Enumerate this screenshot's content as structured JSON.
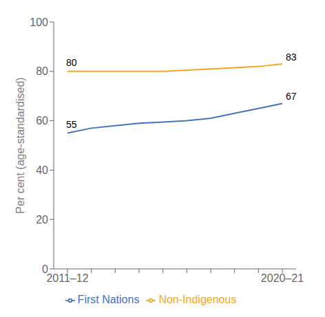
{
  "chart_data": {
    "type": "line",
    "categories": [
      "2011–12",
      null,
      null,
      null,
      null,
      null,
      null,
      null,
      null,
      "2020–21"
    ],
    "series": [
      {
        "name": "First Nations",
        "color": "#4472C4",
        "values": [
          55,
          57,
          58,
          59,
          59.5,
          60,
          61,
          63,
          65,
          67
        ]
      },
      {
        "name": "Non-Indigenous",
        "color": "#F5A623",
        "values": [
          80,
          80,
          80,
          80,
          80,
          80.5,
          81,
          81.5,
          82,
          83
        ]
      }
    ],
    "y_label": "Per cent (age-standardised)",
    "ylim": [
      0,
      100
    ],
    "yticks": [
      0,
      20,
      40,
      60,
      80,
      100
    ],
    "annotations": [
      {
        "text": "55",
        "x": "2011–12",
        "y": 55
      },
      {
        "text": "80",
        "x": "2011–12",
        "y": 80
      },
      {
        "text": "67",
        "x": "2020–21",
        "y": 67
      },
      {
        "text": "83",
        "x": "2020–21",
        "y": 83
      }
    ],
    "grid": false,
    "legend": "bottom"
  }
}
